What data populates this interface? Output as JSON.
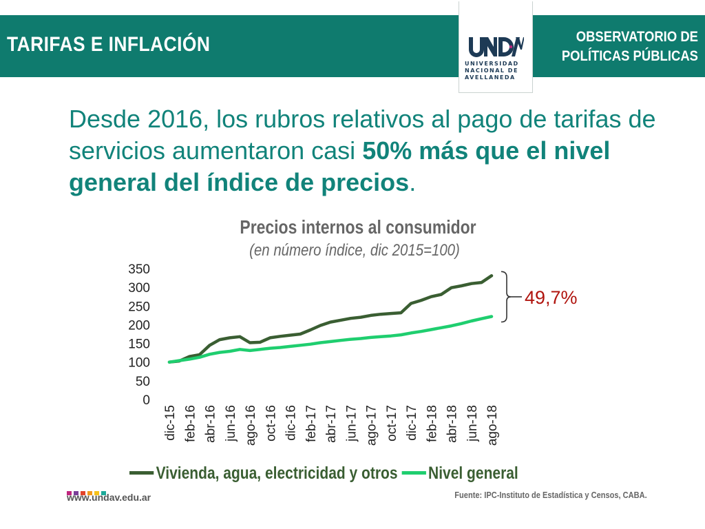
{
  "header": {
    "left_title": "TARIFAS E INFLACIÓN",
    "right_title_line1": "OBSERVATORIO DE",
    "right_title_line2": "POLÍTICAS PÚBLICAS",
    "logo": {
      "mark": "UNDAV",
      "line1": "UNIVERSIDAD",
      "line2": "NACIONAL DE",
      "line3": "AVELLANEDA"
    }
  },
  "headline": {
    "part1": "Desde 2016, los rubros relativos al pago de tarifas de servicios aumentaron casi ",
    "bold": "50% más que el nivel general del índice de precios",
    "end": "."
  },
  "chart_data": {
    "type": "line",
    "title": "Precios internos al consumidor",
    "subtitle": "(en número índice, dic 2015=100)",
    "y_ticks": [
      350,
      300,
      250,
      200,
      150,
      100,
      50,
      0
    ],
    "ylim": [
      0,
      350
    ],
    "grid": false,
    "legend_placement": "bottom",
    "x": [
      "dic-15",
      "ene-16",
      "feb-16",
      "mar-16",
      "abr-16",
      "may-16",
      "jun-16",
      "jul-16",
      "ago-16",
      "sep-16",
      "oct-16",
      "nov-16",
      "dic-16",
      "ene-17",
      "feb-17",
      "mar-17",
      "abr-17",
      "may-17",
      "jun-17",
      "jul-17",
      "ago-17",
      "sep-17",
      "oct-17",
      "nov-17",
      "dic-17",
      "ene-18",
      "feb-18",
      "mar-18",
      "abr-18",
      "may-18",
      "jun-18",
      "jul-18",
      "ago-18"
    ],
    "x_tick_labels": [
      "dic-15",
      "feb-16",
      "abr-16",
      "jun-16",
      "ago-16",
      "oct-16",
      "dic-16",
      "feb-17",
      "abr-17",
      "jun-17",
      "ago-17",
      "oct-17",
      "dic-17",
      "feb-18",
      "abr-18",
      "jun-18",
      "ago-18"
    ],
    "series": [
      {
        "name": "Vivienda, agua, electricidad y otros",
        "color": "#3a5e32",
        "values": [
          100,
          103,
          115,
          120,
          145,
          160,
          165,
          168,
          152,
          153,
          165,
          169,
          172,
          175,
          186,
          198,
          207,
          212,
          217,
          220,
          225,
          228,
          230,
          232,
          257,
          265,
          275,
          281,
          299,
          304,
          310,
          313,
          331
        ]
      },
      {
        "name": "Nivel general",
        "color": "#1fce6f",
        "values": [
          100,
          104,
          108,
          113,
          121,
          126,
          129,
          134,
          131,
          134,
          137,
          139,
          142,
          145,
          148,
          152,
          155,
          158,
          161,
          163,
          166,
          168,
          170,
          173,
          178,
          182,
          187,
          192,
          197,
          203,
          210,
          216,
          222
        ]
      }
    ],
    "annotation": "49,7%",
    "annotation_color": "#b0140e"
  },
  "footer": {
    "website": "www.undav.edu.ar",
    "source": "Fuente: IPC-Instituto de Estadística y Censos, CABA.",
    "dot_colors": [
      "#c0257e",
      "#7b3f98",
      "#e2432a",
      "#f39a1d",
      "#f6c21a",
      "#1faa9a"
    ]
  }
}
